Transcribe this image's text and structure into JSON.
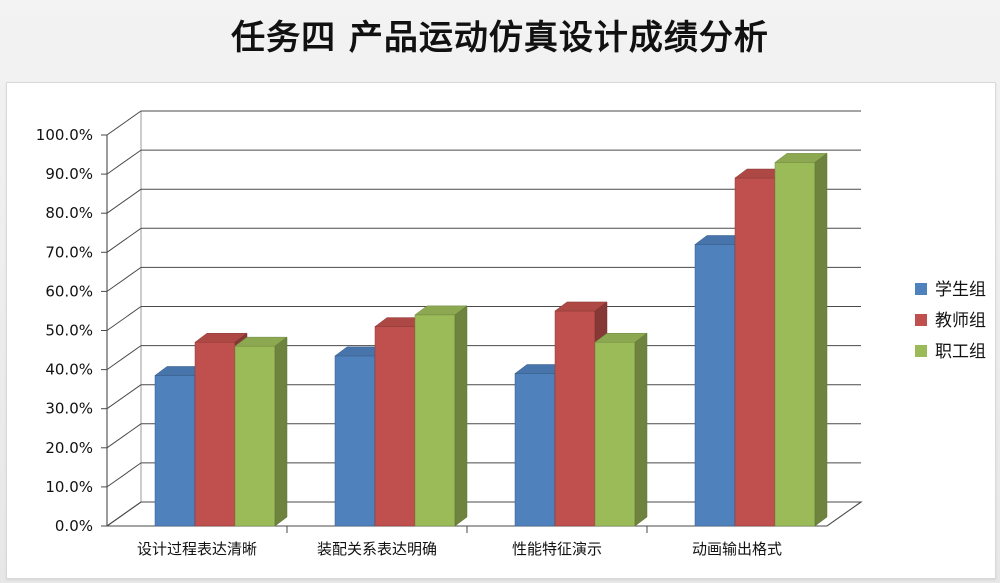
{
  "page": {
    "title": "任务四  产品运动仿真设计成绩分析"
  },
  "chart_data": {
    "type": "bar",
    "title": "",
    "xlabel": "",
    "ylabel": "",
    "categories": [
      "设计过程表达清晰",
      "装配关系表达明确",
      "性能特征演示",
      "动画输出格式"
    ],
    "series": [
      {
        "name": "学生组",
        "values": [
          38.5,
          43.5,
          39.0,
          72.0
        ],
        "color": "#4f81bd"
      },
      {
        "name": "教师组",
        "values": [
          47.0,
          51.0,
          55.0,
          89.0
        ],
        "color": "#c0504d"
      },
      {
        "name": "职工组",
        "values": [
          46.0,
          54.0,
          47.0,
          93.0
        ],
        "color": "#9bbb59"
      }
    ],
    "ylim": [
      0,
      100
    ],
    "y_ticks": [
      "0.0%",
      "10.0%",
      "20.0%",
      "30.0%",
      "40.0%",
      "50.0%",
      "60.0%",
      "70.0%",
      "80.0%",
      "90.0%",
      "100.0%"
    ],
    "grid": true,
    "legend_position": "right",
    "style": "3d-clustered-column"
  }
}
